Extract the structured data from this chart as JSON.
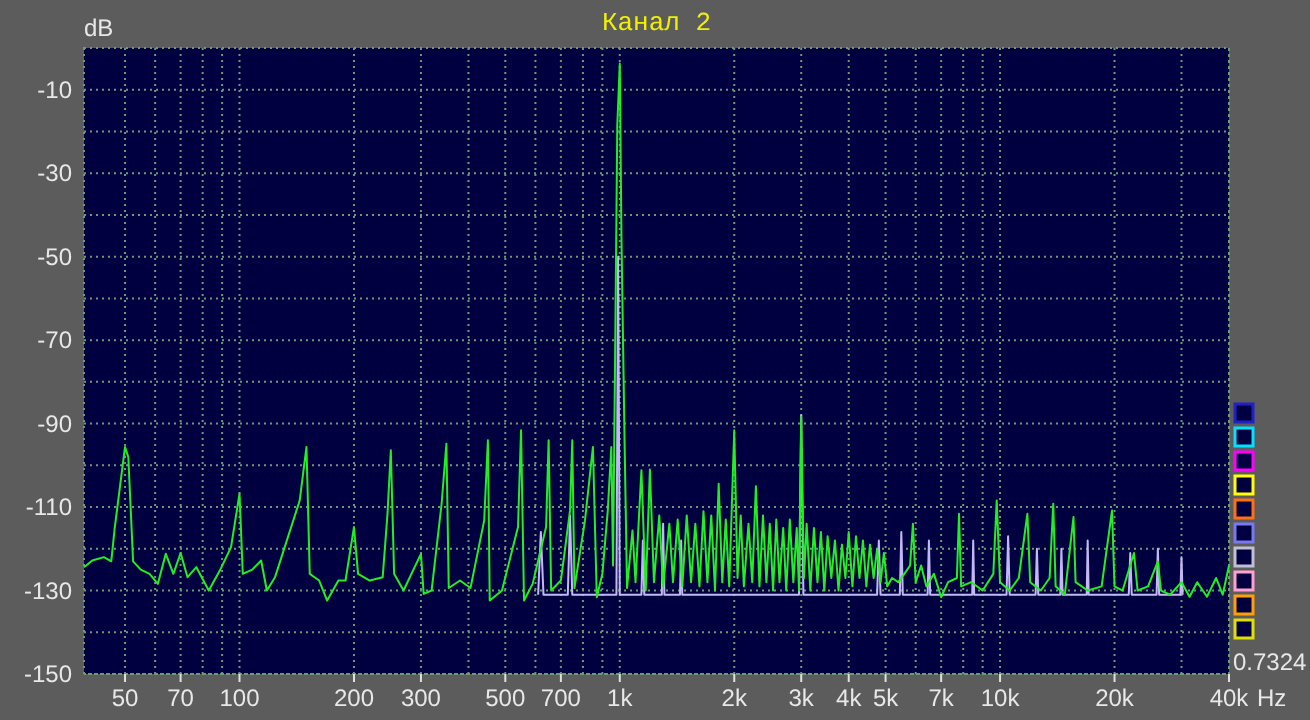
{
  "chart_data": {
    "type": "line",
    "title": "Канал 2",
    "xlabel": "Hz",
    "ylabel": "dB",
    "log": "x",
    "grid": true,
    "xlim": [
      39,
      40000
    ],
    "ylim": [
      -150,
      0
    ],
    "xticks": [
      50,
      {
        "value": 60,
        "label": null
      },
      70,
      {
        "value": 80,
        "label": null
      },
      {
        "value": 90,
        "label": null
      },
      100,
      200,
      300,
      {
        "value": 400,
        "label": null
      },
      500,
      {
        "value": 600,
        "label": null
      },
      700,
      {
        "value": 800,
        "label": null
      },
      {
        "value": 900,
        "label": null
      },
      {
        "value": 1000,
        "label": "1k"
      },
      {
        "value": 2000,
        "label": "2k"
      },
      {
        "value": 3000,
        "label": "3k"
      },
      {
        "value": 4000,
        "label": "4k"
      },
      {
        "value": 5000,
        "label": "5k"
      },
      {
        "value": 6000,
        "label": null
      },
      {
        "value": 7000,
        "label": "7k"
      },
      {
        "value": 8000,
        "label": null
      },
      {
        "value": 9000,
        "label": null
      },
      {
        "value": 10000,
        "label": "10k"
      },
      {
        "value": 20000,
        "label": "20k"
      },
      {
        "value": 30000,
        "label": null
      },
      {
        "value": 40000,
        "label": "40k"
      }
    ],
    "yticks": [
      -150,
      {
        "value": -140,
        "label": null
      },
      -130,
      {
        "value": -120,
        "label": null
      },
      -110,
      {
        "value": -100,
        "label": null
      },
      -90,
      {
        "value": -80,
        "label": null
      },
      -70,
      {
        "value": -60,
        "label": null
      },
      -50,
      {
        "value": -40,
        "label": null
      },
      -30,
      {
        "value": -20,
        "label": null
      },
      -10,
      {
        "value": 0,
        "label": null
      }
    ],
    "annotations": [
      "0.7324"
    ],
    "series": [
      {
        "color": "#c4b8f4",
        "x": [
          610,
          620,
          630,
          730,
          740,
          750,
          980,
          990,
          1000,
          1140,
          1150,
          1160,
          1290,
          1300,
          1310,
          1440,
          1450,
          1460,
          2960,
          3000,
          3040,
          4750,
          4800,
          4850,
          5450,
          5500,
          5550,
          6450,
          6500,
          6550,
          8450,
          8500,
          8550,
          10400,
          10500,
          10600,
          12400,
          12500,
          12600,
          14400,
          14500,
          14600,
          16900,
          17000,
          17100,
          21800,
          22000,
          22200,
          25800,
          26000,
          26200,
          29800,
          30000,
          30200
        ],
        "values": [
          -131,
          -116,
          -131,
          -131,
          -112,
          -131,
          -131,
          -50,
          -131,
          -131,
          -118,
          -131,
          -131,
          -114,
          -131,
          -131,
          -118,
          -131,
          -131,
          -88,
          -131,
          -131,
          -118,
          -131,
          -131,
          -116,
          -131,
          -131,
          -118,
          -131,
          -131,
          -118,
          -131,
          -131,
          -117,
          -131,
          -131,
          -120,
          -131,
          -131,
          -120,
          -131,
          -131,
          -118,
          -131,
          -131,
          -121,
          -131,
          -131,
          -120,
          -131,
          -131,
          -122,
          -131
        ]
      },
      {
        "color": "#22ee22",
        "x": [
          39,
          41,
          44,
          46,
          47,
          50,
          51,
          52.5,
          55,
          58,
          61,
          64,
          67,
          70,
          73,
          77,
          83,
          89,
          95,
          100,
          102,
          108,
          114,
          118,
          124,
          144,
          150,
          153,
          162,
          170,
          182,
          190,
          200,
          205,
          220,
          238,
          245,
          250,
          255,
          270,
          300,
          305,
          320,
          340,
          350,
          355,
          380,
          405,
          440,
          450,
          455,
          490,
          540,
          550,
          560,
          590,
          640,
          650,
          660,
          700,
          740,
          750,
          760,
          810,
          850,
          870,
          900,
          930,
          950,
          960,
          975,
          985,
          1000,
          1010,
          1030,
          1045,
          1080,
          1100,
          1140,
          1170,
          1200,
          1230,
          1270,
          1300,
          1350,
          1380,
          1420,
          1460,
          1500,
          1540,
          1580,
          1620,
          1660,
          1700,
          1740,
          1780,
          1820,
          1860,
          1900,
          1940,
          2000,
          2040,
          2080,
          2120,
          2180,
          2230,
          2280,
          2330,
          2380,
          2430,
          2480,
          2530,
          2580,
          2630,
          2690,
          2740,
          2800,
          2860,
          2920,
          2960,
          3000,
          3050,
          3100,
          3170,
          3240,
          3310,
          3380,
          3450,
          3520,
          3600,
          3680,
          3760,
          3840,
          3920,
          4000,
          4090,
          4180,
          4270,
          4360,
          4450,
          4550,
          4650,
          4750,
          4850,
          4950,
          5050,
          5200,
          5400,
          5600,
          5800,
          5900,
          6000,
          6200,
          6400,
          6700,
          7000,
          7300,
          7700,
          7800,
          7900,
          8400,
          9000,
          9600,
          9800,
          10000,
          10600,
          11200,
          11800,
          12000,
          12800,
          13500,
          13800,
          14000,
          14800,
          15600,
          15800,
          17000,
          18500,
          19700,
          20000,
          21000,
          22500,
          23000,
          24500,
          26000,
          26500,
          28000,
          30000,
          31500,
          33000,
          35000,
          37000,
          38500,
          40000
        ],
        "values": [
          -124.4,
          -122.8,
          -122,
          -123,
          -114.8,
          -95.6,
          -98,
          -123,
          -125,
          -126,
          -128.4,
          -121.2,
          -126,
          -121,
          -126.8,
          -124.4,
          -130,
          -125,
          -119.6,
          -106.8,
          -126,
          -125,
          -122.8,
          -130,
          -126.8,
          -108.4,
          -95.6,
          -126,
          -127.6,
          -132.4,
          -127.6,
          -127.6,
          -114.8,
          -126,
          -127.6,
          -126.8,
          -111.6,
          -96.4,
          -126,
          -130,
          -121.2,
          -130.8,
          -130,
          -109.2,
          -94.8,
          -129.4,
          -127.6,
          -129.4,
          -113.2,
          -94,
          -132.4,
          -130,
          -114.8,
          -91.6,
          -132.4,
          -128.4,
          -114.8,
          -94,
          -130,
          -127.6,
          -110.8,
          -94,
          -129.4,
          -113.2,
          -95.6,
          -131.6,
          -126,
          -110.8,
          -95.6,
          -124,
          -62,
          -18.5,
          -3.7,
          -45,
          -95.6,
          -129.4,
          -115.6,
          -128,
          -101.2,
          -130,
          -101,
          -128,
          -112,
          -129,
          -114,
          -128,
          -113,
          -129,
          -112,
          -128,
          -114,
          -129,
          -111,
          -128,
          -112,
          -130,
          -104.4,
          -128,
          -113,
          -129,
          -91.6,
          -127,
          -112,
          -129,
          -114,
          -128,
          -105,
          -129,
          -112,
          -128,
          -114,
          -130,
          -113,
          -128,
          -115,
          -130,
          -113,
          -128,
          -115,
          -130,
          -88.4,
          -127,
          -114,
          -130,
          -115,
          -128,
          -116,
          -130,
          -117,
          -127,
          -118,
          -130,
          -119,
          -127,
          -116,
          -129,
          -117,
          -127,
          -118,
          -129,
          -119,
          -127,
          -120,
          -128,
          -121,
          -129,
          -127,
          -128,
          -126,
          -124,
          -114,
          -128,
          -124,
          -129,
          -126,
          -131.6,
          -128,
          -127,
          -111.6,
          -129,
          -128,
          -130,
          -126,
          -108.4,
          -128,
          -130,
          -127,
          -111.6,
          -128,
          -130,
          -127,
          -109.2,
          -129,
          -131,
          -112.4,
          -128,
          -130,
          -129,
          -110.8,
          -129,
          -130,
          -121,
          -130,
          -129,
          -123,
          -130,
          -131,
          -128,
          -131.5,
          -128,
          -131.5,
          -127,
          -131,
          -124
        ]
      }
    ]
  }
}
